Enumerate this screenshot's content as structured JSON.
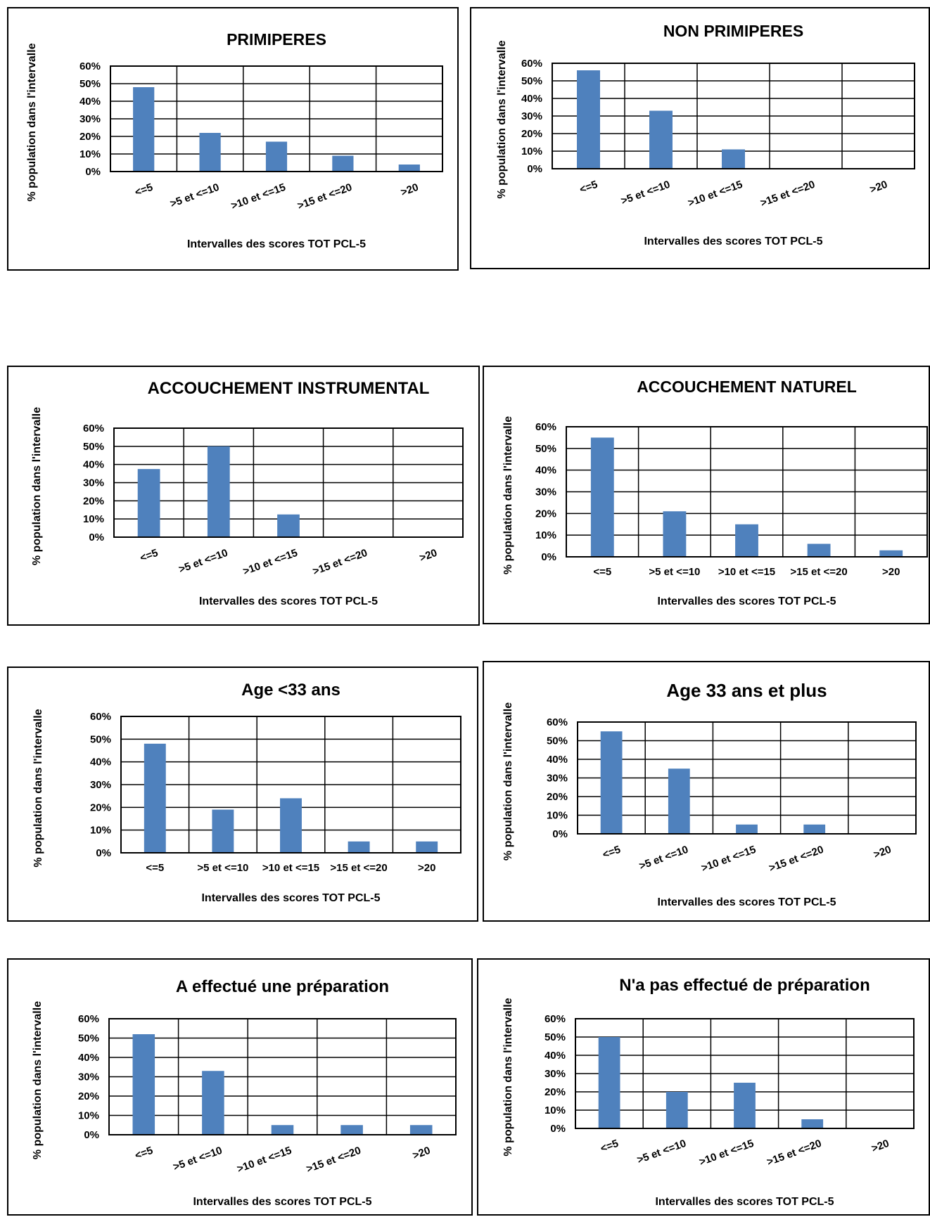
{
  "colors": {
    "bar": "#4F81BD",
    "grid": "#000000",
    "frame": "#000000"
  },
  "chart_data": [
    {
      "type": "bar",
      "title": "PRIMIPERES",
      "xlabel": "Intervalles des scores TOT PCL-5",
      "ylabel": "% population dans l'intervalle",
      "categories": [
        "<=5",
        ">5 et <=10",
        ">10 et <=15",
        ">15 et <=20",
        ">20"
      ],
      "values": [
        0.48,
        0.22,
        0.17,
        0.09,
        0.04
      ],
      "yticks": [
        "0%",
        "10%",
        "20%",
        "30%",
        "40%",
        "50%",
        "60%"
      ],
      "ylim": [
        0,
        0.6
      ],
      "grid": true
    },
    {
      "type": "bar",
      "title": "NON PRIMIPERES",
      "xlabel": "Intervalles des scores TOT PCL-5",
      "ylabel": "% population dans l'intervalle",
      "categories": [
        "<=5",
        ">5 et <=10",
        ">10 et <=15",
        ">15 et <=20",
        ">20"
      ],
      "values": [
        0.56,
        0.33,
        0.11,
        0,
        0
      ],
      "yticks": [
        "0%",
        "10%",
        "20%",
        "30%",
        "40%",
        "50%",
        "60%"
      ],
      "ylim": [
        0,
        0.6
      ],
      "grid": true
    },
    {
      "type": "bar",
      "title": "ACCOUCHEMENT  INSTRUMENTAL",
      "xlabel": "Intervalles des scores TOT PCL-5",
      "ylabel": "% population dans l'intervalle",
      "categories": [
        "<=5",
        ">5 et <=10",
        ">10 et <=15",
        ">15 et <=20",
        ">20"
      ],
      "values": [
        0.375,
        0.5,
        0.125,
        0,
        0
      ],
      "yticks": [
        "0%",
        "10%",
        "20%",
        "30%",
        "40%",
        "50%",
        "60%"
      ],
      "ylim": [
        0,
        0.6
      ],
      "grid": true
    },
    {
      "type": "bar",
      "title": "ACCOUCHEMENT NATUREL",
      "xlabel": "Intervalles des scores TOT PCL-5",
      "ylabel": "% population dans l'intervalle",
      "categories": [
        "<=5",
        ">5 et <=10",
        ">10 et <=15",
        ">15 et <=20",
        ">20"
      ],
      "values": [
        0.55,
        0.21,
        0.15,
        0.06,
        0.03
      ],
      "yticks": [
        "0%",
        "10%",
        "20%",
        "30%",
        "40%",
        "50%",
        "60%"
      ],
      "ylim": [
        0,
        0.6
      ],
      "grid": true
    },
    {
      "type": "bar",
      "title": "Age <33 ans",
      "xlabel": "Intervalles des scores TOT PCL-5",
      "ylabel": "% population dans l'intervalle",
      "categories": [
        "<=5",
        ">5 et <=10",
        ">10 et <=15",
        ">15 et <=20",
        ">20"
      ],
      "values": [
        0.48,
        0.19,
        0.24,
        0.05,
        0.05
      ],
      "yticks": [
        "0%",
        "10%",
        "20%",
        "30%",
        "40%",
        "50%",
        "60%"
      ],
      "ylim": [
        0,
        0.6
      ],
      "grid": true
    },
    {
      "type": "bar",
      "title": "Age 33 ans et plus",
      "xlabel": "Intervalles des scores TOT PCL-5",
      "ylabel": "% population dans l'intervalle",
      "categories": [
        "<=5",
        ">5 et <=10",
        ">10 et <=15",
        ">15 et <=20",
        ">20"
      ],
      "values": [
        0.55,
        0.35,
        0.05,
        0.05,
        0
      ],
      "yticks": [
        "0%",
        "10%",
        "20%",
        "30%",
        "40%",
        "50%",
        "60%"
      ],
      "ylim": [
        0,
        0.6
      ],
      "grid": true
    },
    {
      "type": "bar",
      "title": "A effectué une préparation",
      "xlabel": "Intervalles des scores TOT PCL-5",
      "ylabel": "% population dans l'intervalle",
      "categories": [
        "<=5",
        ">5 et <=10",
        ">10 et <=15",
        ">15 et <=20",
        ">20"
      ],
      "values": [
        0.52,
        0.33,
        0.05,
        0.05,
        0.05
      ],
      "yticks": [
        "0%",
        "10%",
        "20%",
        "30%",
        "40%",
        "50%",
        "60%"
      ],
      "ylim": [
        0,
        0.6
      ],
      "grid": true
    },
    {
      "type": "bar",
      "title": "N'a pas effectué de préparation",
      "xlabel": "Intervalles des scores TOT PCL-5",
      "ylabel": "% population dans l'intervalle",
      "categories": [
        "<=5",
        ">5 et <=10",
        ">10 et <=15",
        ">15 et <=20",
        ">20"
      ],
      "values": [
        0.5,
        0.2,
        0.25,
        0.05,
        0
      ],
      "yticks": [
        "0%",
        "10%",
        "20%",
        "30%",
        "40%",
        "50%",
        "60%"
      ],
      "ylim": [
        0,
        0.6
      ],
      "grid": true
    }
  ]
}
